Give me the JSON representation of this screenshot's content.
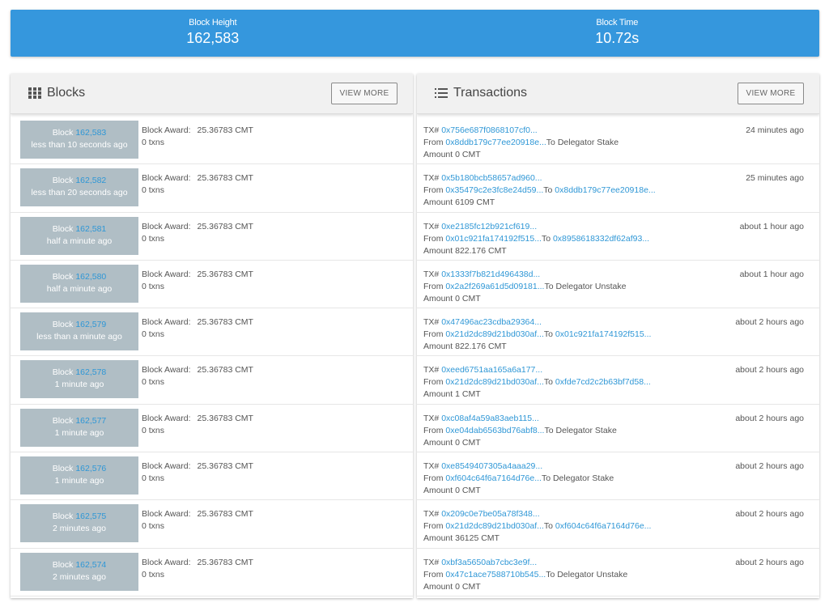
{
  "stats": {
    "height_label": "Block Height",
    "height_value": "162,583",
    "time_label": "Block Time",
    "time_value": "10.72s"
  },
  "blocks_panel": {
    "title": "Blocks",
    "view_more": "VIEW MORE",
    "icon": "grid-icon",
    "award_label": "Block Award:",
    "items": [
      {
        "prefix": "Block",
        "number": "162,583",
        "age": "less than 10 seconds ago",
        "award": "25.36783 CMT",
        "txns": "0 txns"
      },
      {
        "prefix": "Block",
        "number": "162,582",
        "age": "less than 20 seconds ago",
        "award": "25.36783 CMT",
        "txns": "0 txns"
      },
      {
        "prefix": "Block",
        "number": "162,581",
        "age": "half a minute ago",
        "award": "25.36783 CMT",
        "txns": "0 txns"
      },
      {
        "prefix": "Block",
        "number": "162,580",
        "age": "half a minute ago",
        "award": "25.36783 CMT",
        "txns": "0 txns"
      },
      {
        "prefix": "Block",
        "number": "162,579",
        "age": "less than a minute ago",
        "award": "25.36783 CMT",
        "txns": "0 txns"
      },
      {
        "prefix": "Block",
        "number": "162,578",
        "age": "1 minute ago",
        "award": "25.36783 CMT",
        "txns": "0 txns"
      },
      {
        "prefix": "Block",
        "number": "162,577",
        "age": "1 minute ago",
        "award": "25.36783 CMT",
        "txns": "0 txns"
      },
      {
        "prefix": "Block",
        "number": "162,576",
        "age": "1 minute ago",
        "award": "25.36783 CMT",
        "txns": "0 txns"
      },
      {
        "prefix": "Block",
        "number": "162,575",
        "age": "2 minutes ago",
        "award": "25.36783 CMT",
        "txns": "0 txns"
      },
      {
        "prefix": "Block",
        "number": "162,574",
        "age": "2 minutes ago",
        "award": "25.36783 CMT",
        "txns": "0 txns"
      }
    ]
  },
  "tx_panel": {
    "title": "Transactions",
    "view_more": "VIEW MORE",
    "icon": "list-icon",
    "tx_label": "TX#",
    "from_label": "From",
    "to_label": "To",
    "amount_label": "Amount",
    "items": [
      {
        "hash": "0x756e687f0868107cf0...",
        "from": "0x8ddb179c77ee20918e...",
        "to": "",
        "to_text": "Delegator Stake",
        "amount": "0 CMT",
        "time": "24 minutes ago"
      },
      {
        "hash": "0x5b180bcb58657ad960...",
        "from": "0x35479c2e3fc8e24d59...",
        "to": "0x8ddb179c77ee20918e...",
        "to_text": "",
        "amount": "6109 CMT",
        "time": "25 minutes ago"
      },
      {
        "hash": "0xe2185fc12b921cf619...",
        "from": "0x01c921fa174192f515...",
        "to": "0x8958618332df62af93...",
        "to_text": "",
        "amount": "822.176 CMT",
        "time": "about 1 hour ago"
      },
      {
        "hash": "0x1333f7b821d496438d...",
        "from": "0x2a2f269a61d5d09181...",
        "to": "",
        "to_text": "Delegator Unstake",
        "amount": "0 CMT",
        "time": "about 1 hour ago"
      },
      {
        "hash": "0x47496ac23cdba29364...",
        "from": "0x21d2dc89d21bd030af...",
        "to": "0x01c921fa174192f515...",
        "to_text": "",
        "amount": "822.176 CMT",
        "time": "about 2 hours ago"
      },
      {
        "hash": "0xeed6751aa165a6a177...",
        "from": "0x21d2dc89d21bd030af...",
        "to": "0xfde7cd2c2b63bf7d58...",
        "to_text": "",
        "amount": "1 CMT",
        "time": "about 2 hours ago"
      },
      {
        "hash": "0xc08af4a59a83aeb115...",
        "from": "0xe04dab6563bd76abf8...",
        "to": "",
        "to_text": "Delegator Stake",
        "amount": "0 CMT",
        "time": "about 2 hours ago"
      },
      {
        "hash": "0xe8549407305a4aaa29...",
        "from": "0xf604c64f6a7164d76e...",
        "to": "",
        "to_text": "Delegator Stake",
        "amount": "0 CMT",
        "time": "about 2 hours ago"
      },
      {
        "hash": "0x209c0e7be05a78f348...",
        "from": "0x21d2dc89d21bd030af...",
        "to": "0xf604c64f6a7164d76e...",
        "to_text": "",
        "amount": "36125 CMT",
        "time": "about 2 hours ago"
      },
      {
        "hash": "0xbf3a5650ab7cbc3e9f...",
        "from": "0x47c1ace7588710b545...",
        "to": "",
        "to_text": "Delegator Unstake",
        "amount": "0 CMT",
        "time": "about 2 hours ago"
      }
    ]
  }
}
